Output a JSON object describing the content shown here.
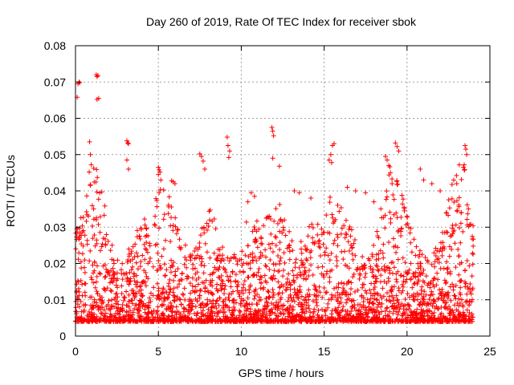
{
  "chart_data": {
    "type": "scatter",
    "title": "Day 260 of 2019, Rate Of TEC Index for receiver sbok",
    "xlabel": "GPS time / hours",
    "ylabel": "ROTI / TECUs",
    "xlim": [
      0,
      25
    ],
    "ylim": [
      0,
      0.08
    ],
    "x_ticks": [
      0,
      5,
      10,
      15,
      20,
      25
    ],
    "y_ticks": [
      0,
      0.01,
      0.02,
      0.03,
      0.04,
      0.05,
      0.06,
      0.07,
      0.08
    ],
    "x_tick_labels": [
      "0",
      "5",
      "10",
      "15",
      "20",
      "25"
    ],
    "y_tick_labels": [
      "0",
      "0.01",
      "0.02",
      "0.03",
      "0.04",
      "0.05",
      "0.06",
      "0.07",
      "0.08"
    ],
    "grid": true,
    "marker": "plus",
    "color": "#ff0000",
    "series": [
      {
        "points": [
          [
            0.1,
            0.0658
          ],
          [
            0.15,
            0.0695
          ],
          [
            0.22,
            0.07
          ],
          [
            0.25,
            0.0698
          ],
          [
            1.25,
            0.072
          ],
          [
            1.3,
            0.0715
          ],
          [
            1.35,
            0.0718
          ],
          [
            1.3,
            0.0652
          ],
          [
            1.4,
            0.0655
          ],
          [
            0.85,
            0.0535
          ],
          [
            0.9,
            0.05
          ],
          [
            0.95,
            0.0472
          ],
          [
            0.9,
            0.0415
          ],
          [
            3.1,
            0.0538
          ],
          [
            3.15,
            0.0532
          ],
          [
            3.2,
            0.053
          ],
          [
            3.1,
            0.0485
          ],
          [
            3.2,
            0.046
          ],
          [
            5.0,
            0.0465
          ],
          [
            5.05,
            0.0458
          ],
          [
            5.1,
            0.0452
          ],
          [
            5.0,
            0.0445
          ],
          [
            5.8,
            0.0428
          ],
          [
            5.9,
            0.0425
          ],
          [
            6.0,
            0.042
          ],
          [
            7.5,
            0.0502
          ],
          [
            7.6,
            0.0495
          ],
          [
            7.7,
            0.0482
          ],
          [
            7.8,
            0.046
          ],
          [
            9.15,
            0.0548
          ],
          [
            9.2,
            0.0525
          ],
          [
            9.3,
            0.051
          ],
          [
            9.25,
            0.0492
          ],
          [
            10.4,
            0.037
          ],
          [
            10.6,
            0.0395
          ],
          [
            10.8,
            0.0385
          ],
          [
            11.85,
            0.0575
          ],
          [
            11.9,
            0.0565
          ],
          [
            11.95,
            0.0552
          ],
          [
            11.9,
            0.049
          ],
          [
            12.3,
            0.0468
          ],
          [
            13.2,
            0.04
          ],
          [
            13.5,
            0.0395
          ],
          [
            14.2,
            0.038
          ],
          [
            15.3,
            0.0485
          ],
          [
            15.4,
            0.05
          ],
          [
            15.5,
            0.0525
          ],
          [
            15.6,
            0.053
          ],
          [
            15.45,
            0.0478
          ],
          [
            16.4,
            0.041
          ],
          [
            16.9,
            0.04
          ],
          [
            17.5,
            0.0395
          ],
          [
            18.0,
            0.037
          ],
          [
            18.7,
            0.0495
          ],
          [
            18.8,
            0.0485
          ],
          [
            18.9,
            0.047
          ],
          [
            19.0,
            0.045
          ],
          [
            19.3,
            0.0532
          ],
          [
            19.4,
            0.0522
          ],
          [
            19.5,
            0.051
          ],
          [
            20.8,
            0.046
          ],
          [
            21.0,
            0.043
          ],
          [
            21.5,
            0.042
          ],
          [
            22.0,
            0.04
          ],
          [
            23.0,
            0.042
          ],
          [
            23.4,
            0.0465
          ],
          [
            23.45,
            0.0472
          ],
          [
            23.5,
            0.0525
          ],
          [
            23.55,
            0.0515
          ],
          [
            23.6,
            0.05
          ]
        ]
      }
    ]
  }
}
